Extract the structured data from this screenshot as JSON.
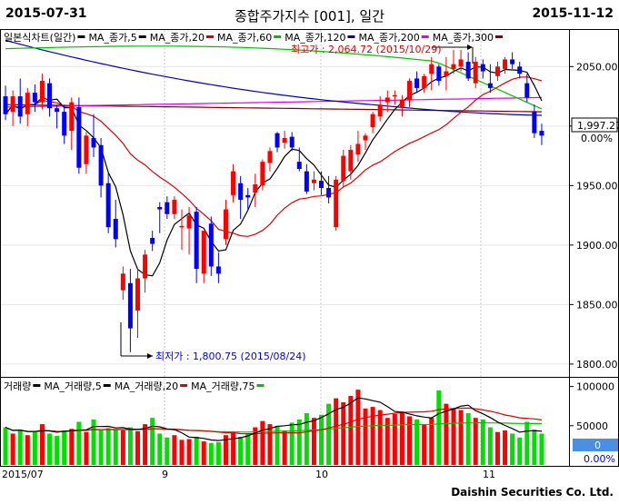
{
  "header": {
    "start_date": "2015-07-31",
    "title": "종합주가지수 [001], 일간",
    "end_date": "2015-11-12"
  },
  "price_panel": {
    "legend": [
      {
        "label": "일본식차트(일간)",
        "color": "#000000"
      },
      {
        "label": "MA_종가,5",
        "color": "#000000"
      },
      {
        "label": "MA_종가,20",
        "color": "#e00000"
      },
      {
        "label": "MA_종가,60",
        "color": "#00c000"
      },
      {
        "label": "MA_종가,120",
        "color": "#0000c0"
      },
      {
        "label": "MA_종가,200",
        "color": "#e000e0"
      },
      {
        "label": "MA_종가,300",
        "color": "#800000"
      }
    ],
    "y_ticks": [
      "2050.00",
      "2000.00",
      "1950.00",
      "1900.00",
      "1850.00",
      "1800.00"
    ],
    "last_value": "1,997.27",
    "last_change": "0.00%",
    "high_annotation": "최고가 : 2,064.72 (2015/10/29)",
    "low_annotation": "최저가 : 1,800.75 (2015/08/24)"
  },
  "volume_panel": {
    "legend": [
      {
        "label": "거래량",
        "color": "#000000"
      },
      {
        "label": "MA_거래량,5",
        "color": "#000000"
      },
      {
        "label": "MA_거래량,20",
        "color": "#e00000"
      },
      {
        "label": "MA_거래량,75",
        "color": "#00c000"
      }
    ],
    "y_ticks": [
      "100000",
      "50000"
    ],
    "last_value": "0",
    "last_change": "0.00%"
  },
  "x_axis": {
    "labels": [
      "2015/07",
      "9",
      "10",
      "11"
    ]
  },
  "footer": {
    "brand": "Daishin Securities Co. Ltd."
  },
  "colors": {
    "up": "#ff0000",
    "down": "#0000ff",
    "vol_up": "#ff0000",
    "vol_down": "#00e000",
    "grid": "#c8c8c8"
  },
  "chart_data": {
    "type": "candlestick",
    "price_ylim": [
      1790,
      2080
    ],
    "volume_ylim": [
      0,
      110000
    ],
    "candles": [
      [
        2025,
        2034,
        2005,
        2010
      ],
      [
        2012,
        2030,
        2000,
        2025
      ],
      [
        2025,
        2040,
        2002,
        2008
      ],
      [
        2010,
        2032,
        2000,
        2028
      ],
      [
        2028,
        2035,
        2012,
        2020
      ],
      [
        2020,
        2044,
        2014,
        2038
      ],
      [
        2036,
        2040,
        2008,
        2015
      ],
      [
        2015,
        2018,
        1998,
        2012
      ],
      [
        2012,
        2018,
        1985,
        1992
      ],
      [
        1996,
        2024,
        1980,
        2020
      ],
      [
        2016,
        2024,
        1960,
        1965
      ],
      [
        1968,
        1995,
        1960,
        1992
      ],
      [
        1990,
        2010,
        1974,
        1982
      ],
      [
        1984,
        1990,
        1940,
        1950
      ],
      [
        1952,
        1960,
        1910,
        1915
      ],
      [
        1922,
        1938,
        1898,
        1905
      ],
      [
        1862,
        1882,
        1854,
        1876
      ],
      [
        1868,
        1880,
        1810,
        1830
      ],
      [
        1845,
        1880,
        1822,
        1872
      ],
      [
        1872,
        1896,
        1860,
        1892
      ],
      [
        1906,
        1912,
        1895,
        1901
      ],
      [
        1932,
        1936,
        1910,
        1930
      ],
      [
        1936,
        1941,
        1922,
        1926
      ],
      [
        1926,
        1941,
        1922,
        1938
      ],
      [
        1916,
        1930,
        1896,
        1916
      ],
      [
        1914,
        1932,
        1892,
        1925
      ],
      [
        1928,
        1932,
        1868,
        1880
      ],
      [
        1876,
        1912,
        1868,
        1912
      ],
      [
        1918,
        1924,
        1874,
        1882
      ],
      [
        1882,
        1894,
        1868,
        1876
      ],
      [
        1905,
        1938,
        1900,
        1930
      ],
      [
        1942,
        1968,
        1936,
        1962
      ],
      [
        1952,
        1958,
        1922,
        1938
      ],
      [
        1942,
        1948,
        1930,
        1940
      ],
      [
        1944,
        1960,
        1932,
        1951
      ],
      [
        1950,
        1972,
        1946,
        1970
      ],
      [
        1969,
        1982,
        1962,
        1979
      ],
      [
        1994,
        1995,
        1978,
        1982
      ],
      [
        1986,
        1996,
        1981,
        1990
      ],
      [
        1991,
        1995,
        1979,
        1982
      ],
      [
        1970,
        1982,
        1962,
        1964
      ],
      [
        1962,
        1968,
        1943,
        1945
      ],
      [
        1952,
        1962,
        1946,
        1955
      ],
      [
        1954,
        1962,
        1942,
        1948
      ],
      [
        1948,
        1958,
        1935,
        1940
      ],
      [
        1915,
        1958,
        1912,
        1955
      ],
      [
        1954,
        1980,
        1949,
        1975
      ],
      [
        1962,
        1984,
        1955,
        1980
      ],
      [
        1976,
        1996,
        1970,
        1985
      ],
      [
        1988,
        1994,
        1980,
        1992
      ],
      [
        1999,
        2012,
        1994,
        2010
      ],
      [
        2008,
        2025,
        2004,
        2018
      ],
      [
        2020,
        2030,
        2012,
        2024
      ],
      [
        2026,
        2030,
        2018,
        2026
      ],
      [
        2016,
        2026,
        2008,
        2022
      ],
      [
        2022,
        2040,
        2016,
        2038
      ],
      [
        2040,
        2046,
        2028,
        2032
      ],
      [
        2032,
        2044,
        2028,
        2042
      ],
      [
        2044,
        2058,
        2030,
        2052
      ],
      [
        2050,
        2052,
        2034,
        2038
      ],
      [
        2042,
        2058,
        2030,
        2046
      ],
      [
        2048,
        2064,
        2044,
        2052
      ],
      [
        2050,
        2064,
        2046,
        2056
      ],
      [
        2054,
        2062,
        2038,
        2040
      ],
      [
        2036,
        2058,
        2032,
        2054
      ],
      [
        2052,
        2056,
        2040,
        2046
      ],
      [
        2036,
        2052,
        2028,
        2032
      ],
      [
        2042,
        2054,
        2038,
        2050
      ],
      [
        2048,
        2058,
        2044,
        2056
      ],
      [
        2056,
        2062,
        2048,
        2052
      ],
      [
        2050,
        2054,
        2040,
        2044
      ],
      [
        2036,
        2044,
        2020,
        2024
      ],
      [
        2012,
        2018,
        1990,
        1994
      ],
      [
        1996,
        2002,
        1984,
        1992
      ]
    ],
    "volume": [
      48000,
      40000,
      45000,
      38000,
      42000,
      52000,
      40000,
      37000,
      44000,
      46000,
      55000,
      42000,
      58000,
      44000,
      47000,
      45000,
      44000,
      48000,
      43000,
      52000,
      60000,
      40000,
      35000,
      38000,
      32000,
      33000,
      36000,
      30000,
      28000,
      29000,
      38000,
      42000,
      36000,
      40000,
      48000,
      56000,
      52000,
      50000,
      44000,
      54000,
      58000,
      66000,
      60000,
      64000,
      78000,
      85000,
      80000,
      88000,
      96000,
      72000,
      74000,
      70000,
      60000,
      65000,
      68000,
      62000,
      58000,
      52000,
      60000,
      95000,
      78000,
      72000,
      70000,
      66000,
      60000,
      58000,
      48000,
      42000,
      44000,
      40000,
      35000,
      55000,
      45000,
      40000
    ]
  }
}
